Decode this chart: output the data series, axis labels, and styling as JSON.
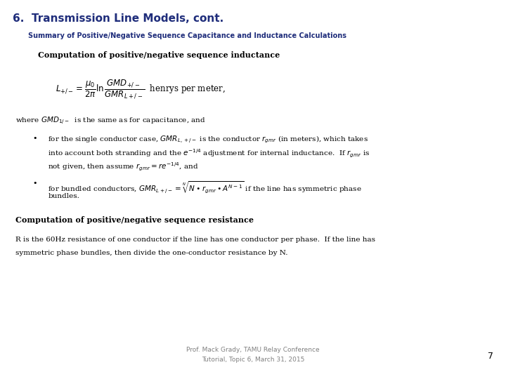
{
  "title": "6.  Transmission Line Models, cont.",
  "subtitle": "Summary of Positive/Negative Sequence Capacitance and Inductance Calculations",
  "section1_bold": "Computation of positive/negative sequence inductance",
  "where_text": "where $GMD_{1/-}$  is the same as for capacitance, and",
  "bullet1_line1": "for the single conductor case, $GMR_{L,+/-}$ is the conductor $r_{gmr}$ (in meters), which takes",
  "bullet1_line2": "into account both stranding and the $e^{-1/4}$ adjustment for internal inductance.  If $r_{gmr}$ is",
  "bullet1_line3": "not given, then assume $r_{gmr} = re^{-1/4}$, and",
  "bullet2_line1": "for bundled conductors, $GMR_{L+/-} = \\sqrt[N]{N \\bullet r_{gmr} \\bullet A^{N-1}}$ if the line has symmetric phase",
  "bullet2_line2": "bundles.",
  "section2_bold": "Computation of positive/negative sequence resistance",
  "resistance_text1": "R is the 60Hz resistance of one conductor if the line has one conductor per phase.  If the line has",
  "resistance_text2": "symmetric phase bundles, then divide the one-conductor resistance by N.",
  "footer_line1": "Prof. Mack Grady, TAMU Relay Conference",
  "footer_line2": "Tutorial, Topic 6, March 31, 2015",
  "page_number": "7",
  "bg_color": "#ffffff",
  "title_color": "#1F2D7B",
  "subtitle_color": "#1F2D7B",
  "body_color": "#000000",
  "footer_color": "#808080",
  "title_fontsize": 11,
  "subtitle_fontsize": 7,
  "section_fontsize": 8,
  "body_fontsize": 7.5,
  "formula_fontsize": 8.5,
  "footer_fontsize": 6.5
}
